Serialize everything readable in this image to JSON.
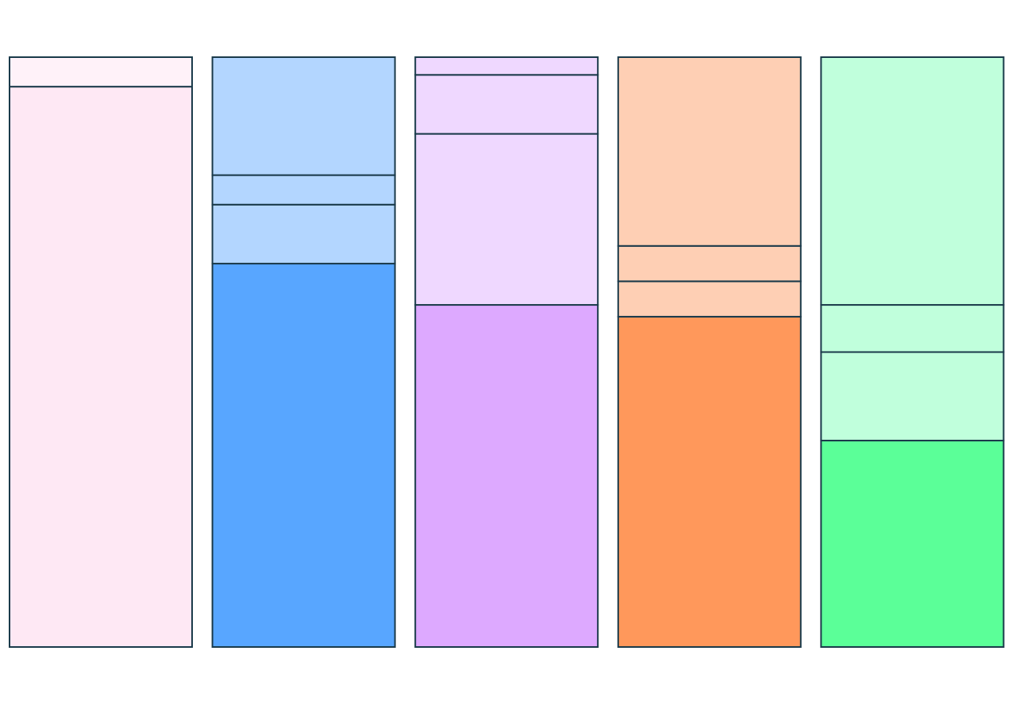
{
  "chart_data": {
    "type": "bar",
    "stacked": true,
    "normalized_percent": true,
    "title": "",
    "xlabel": "",
    "ylabel": "",
    "ylim": [
      0,
      100
    ],
    "grid": false,
    "legend": "none",
    "border_color": "#1a3a4a",
    "columns": [
      {
        "segments": [
          {
            "value": 95,
            "color": "#fee8f4"
          },
          {
            "value": 5,
            "color": "#fff2f9"
          }
        ]
      },
      {
        "segments": [
          {
            "value": 65,
            "color": "#58a6ff"
          },
          {
            "value": 10,
            "color": "#b3d6ff"
          },
          {
            "value": 5,
            "color": "#b3d6ff"
          },
          {
            "value": 20,
            "color": "#b3d6ff"
          }
        ]
      },
      {
        "segments": [
          {
            "value": 58,
            "color": "#dda9ff"
          },
          {
            "value": 29,
            "color": "#efd8ff"
          },
          {
            "value": 10,
            "color": "#efd8ff"
          },
          {
            "value": 3,
            "color": "#efd8ff"
          }
        ]
      },
      {
        "segments": [
          {
            "value": 56,
            "color": "#ff985b"
          },
          {
            "value": 6,
            "color": "#fecfb4"
          },
          {
            "value": 6,
            "color": "#fecfb4"
          },
          {
            "value": 32,
            "color": "#fecfb4"
          }
        ]
      },
      {
        "segments": [
          {
            "value": 35,
            "color": "#5bff98"
          },
          {
            "value": 15,
            "color": "#c0ffdc"
          },
          {
            "value": 8,
            "color": "#c0ffdc"
          },
          {
            "value": 42,
            "color": "#c0ffdc"
          }
        ]
      }
    ]
  }
}
